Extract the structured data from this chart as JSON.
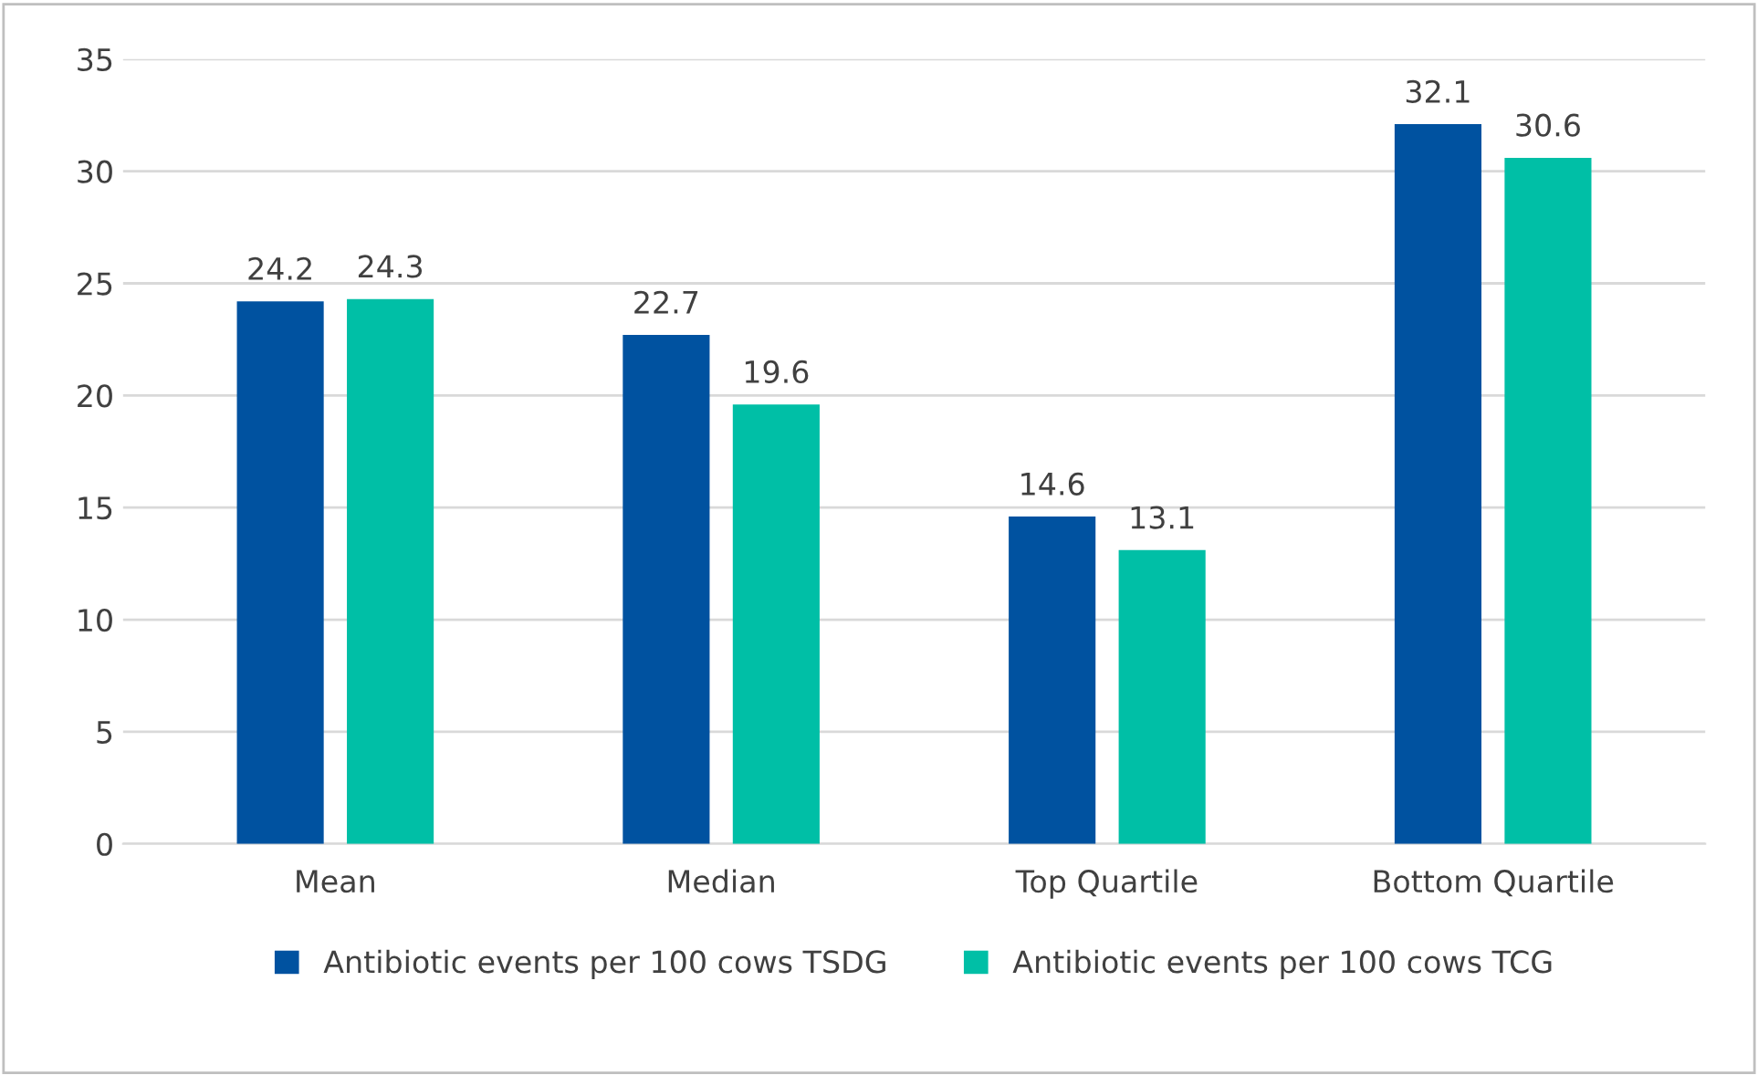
{
  "chart_data": {
    "type": "bar",
    "categories": [
      "Mean",
      "Median",
      "Top Quartile",
      "Bottom Quartile"
    ],
    "series": [
      {
        "name": "Antibiotic events per 100 cows TSDG",
        "color": "#0052a0",
        "values": [
          24.2,
          22.7,
          14.6,
          32.1
        ]
      },
      {
        "name": "Antibiotic events per 100 cows TCG",
        "color": "#00bfa6",
        "values": [
          24.3,
          19.6,
          13.1,
          30.6
        ]
      }
    ],
    "ylim": [
      0,
      35
    ],
    "yticks": [
      0,
      5,
      10,
      15,
      20,
      25,
      30,
      35
    ],
    "grid": "y",
    "legend": "bottom",
    "data_labels": true
  }
}
